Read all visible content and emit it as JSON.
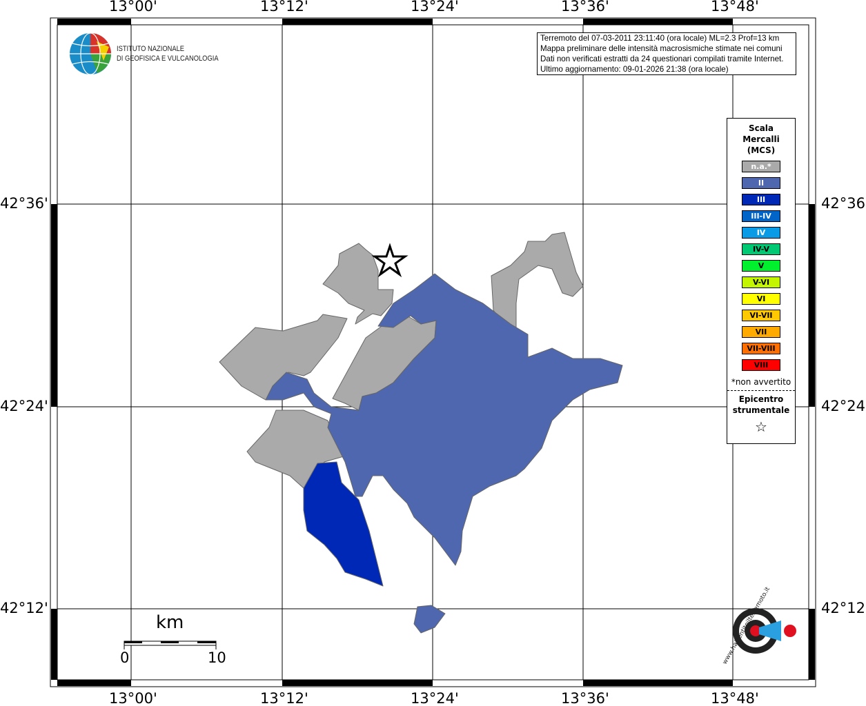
{
  "map": {
    "lon_labels": [
      "13°00'",
      "13°12'",
      "13°24'",
      "13°36'",
      "13°48'"
    ],
    "lat_labels": [
      "42°36'",
      "42°24'",
      "42°12'"
    ],
    "info": [
      "Terremoto del 07-03-2011 23:11:40 (ora locale) ML=2.3 Prof=13 km",
      "Mappa preliminare delle intensità macrosismiche stimate nei comuni",
      "Dati non verificati estratti da 24 questionari compilati tramite Internet.",
      "Ultimo aggiornamento: 09-01-2026 21:38 (ora locale)"
    ],
    "ingv_logo": [
      "ISTITUTO NAZIONALE",
      "DI GEOFISICA E VULCANOLOGIA"
    ],
    "hsit_logo": "www.haisentitoilterremoto.it",
    "scale": {
      "unit": "km",
      "min": "0",
      "max": "10"
    },
    "legend": {
      "title": [
        "Scala",
        "Mercalli",
        "(MCS)"
      ],
      "classes": [
        {
          "label": "n.a.*",
          "color": "#aaaaaa",
          "text": "#ffffff"
        },
        {
          "label": "II",
          "color": "#4f67ae",
          "text": "#ffffff"
        },
        {
          "label": "III",
          "color": "#0028b7",
          "text": "#ffffff"
        },
        {
          "label": "III-IV",
          "color": "#0064c8",
          "text": "#ffffff"
        },
        {
          "label": "IV",
          "color": "#0a9be6",
          "text": "#ffffff"
        },
        {
          "label": "IV-V",
          "color": "#00c873",
          "text": "#000000"
        },
        {
          "label": "V",
          "color": "#00f02d",
          "text": "#000000"
        },
        {
          "label": "V-VI",
          "color": "#c3f500",
          "text": "#000000"
        },
        {
          "label": "VI",
          "color": "#ffff00",
          "text": "#000000"
        },
        {
          "label": "VI-VII",
          "color": "#ffc800",
          "text": "#000000"
        },
        {
          "label": "VII",
          "color": "#ffaa00",
          "text": "#000000"
        },
        {
          "label": "VII-VIII",
          "color": "#ff6e00",
          "text": "#000000"
        },
        {
          "label": "VIII",
          "color": "#ff0000",
          "text": "#000000"
        }
      ],
      "note": "*non avvertito",
      "epicentre": [
        "Epicentro",
        "strumentale"
      ]
    },
    "areas": [
      {
        "intensity": "n.a.",
        "color": "#aaaaaa"
      },
      {
        "intensity": "II",
        "color": "#4f67ae"
      },
      {
        "intensity": "III",
        "color": "#0028b7"
      }
    ]
  }
}
